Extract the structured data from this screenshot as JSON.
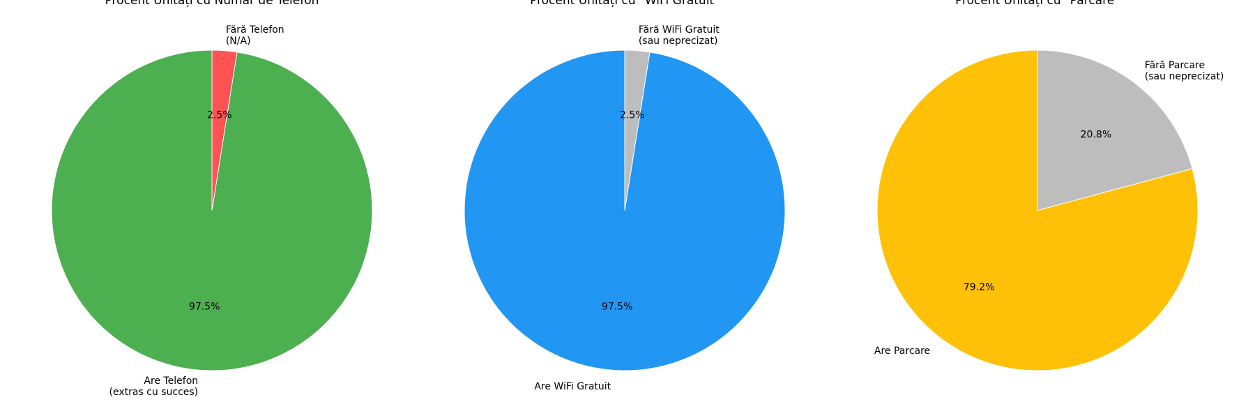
{
  "chart_data": [
    {
      "type": "pie",
      "title": "Procent Unități cu Număr de Telefon",
      "start_angle_deg": 90,
      "direction": "counterclockwise",
      "slices": [
        {
          "label": "Are Telefon\n(extras cu succes)",
          "value": 97.5,
          "pct_label": "97.5%",
          "color": "#4CAF50",
          "label_align": "right"
        },
        {
          "label": "Fără Telefon\n(N/A)",
          "value": 2.5,
          "pct_label": "2.5%",
          "color": "#FF5252",
          "label_align": "left"
        }
      ]
    },
    {
      "type": "pie",
      "title": "Procent Unități cu \"WiFi Gratuit\"",
      "start_angle_deg": 90,
      "direction": "counterclockwise",
      "slices": [
        {
          "label": "Are WiFi Gratuit",
          "value": 97.5,
          "pct_label": "97.5%",
          "color": "#2196F3",
          "label_align": "right"
        },
        {
          "label": "Fără WiFi Gratuit\n(sau neprecizat)",
          "value": 2.5,
          "pct_label": "2.5%",
          "color": "#BDBDBD",
          "label_align": "left"
        }
      ]
    },
    {
      "type": "pie",
      "title": "Procent Unități cu \"Parcare\"",
      "start_angle_deg": 90,
      "direction": "counterclockwise",
      "slices": [
        {
          "label": "Are Parcare",
          "value": 79.2,
          "pct_label": "79.2%",
          "color": "#FFC107",
          "label_align": "right"
        },
        {
          "label": "Fără Parcare\n(sau neprecizat)",
          "value": 20.8,
          "pct_label": "20.8%",
          "color": "#BDBDBD",
          "label_align": "left"
        }
      ]
    }
  ]
}
